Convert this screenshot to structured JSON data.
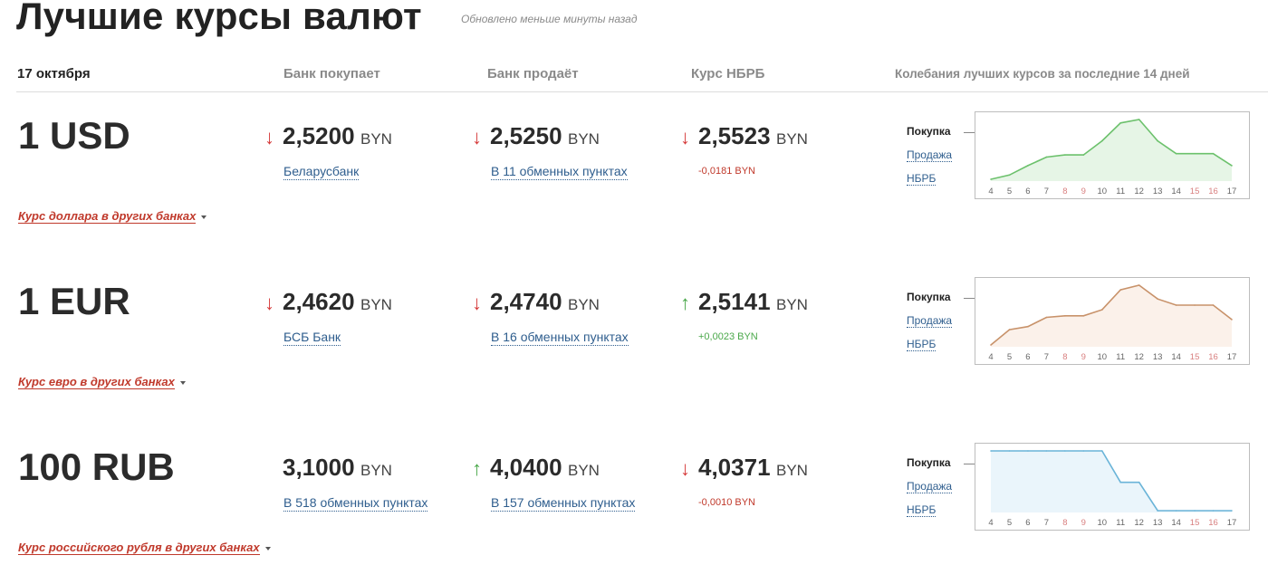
{
  "header": {
    "title": "Лучшие курсы валют",
    "updated": "Обновлено меньше минуты назад",
    "date": "17 октября",
    "col_buy": "Банк покупает",
    "col_sell": "Банк продаёт",
    "col_nbrb": "Курс НБРБ",
    "col_chart": "Колебания лучших курсов за последние 14 дней"
  },
  "chart_menu": {
    "buy": "Покупка",
    "sell": "Продажа",
    "nbrb": "НБРБ"
  },
  "currencies": [
    {
      "title": "1 USD",
      "buy": {
        "value": "2,5200",
        "unit": "BYN",
        "trend": "down",
        "source": "Беларусбанк"
      },
      "sell": {
        "value": "2,5250",
        "unit": "BYN",
        "trend": "down",
        "source": "В 11 обменных пунктах"
      },
      "nbrb": {
        "value": "2,5523",
        "unit": "BYN",
        "trend": "down",
        "delta": "-0,0181 BYN"
      },
      "others": "Курс доллара в других банках",
      "chart": {
        "line_color": "#6cc16c",
        "fill_color": "#e6f5e6",
        "x": [
          "4",
          "5",
          "6",
          "7",
          "8",
          "9",
          "10",
          "11",
          "12",
          "13",
          "14",
          "15",
          "16",
          "17"
        ],
        "values": [
          0.08,
          0.18,
          0.4,
          0.6,
          0.65,
          0.65,
          0.98,
          1.4,
          1.48,
          0.98,
          0.68,
          0.68,
          0.68,
          0.4
        ]
      }
    },
    {
      "title": "1 EUR",
      "buy": {
        "value": "2,4620",
        "unit": "BYN",
        "trend": "down",
        "source": "БСБ Банк"
      },
      "sell": {
        "value": "2,4740",
        "unit": "BYN",
        "trend": "down",
        "source": "В 16 обменных пунктах"
      },
      "nbrb": {
        "value": "2,5141",
        "unit": "BYN",
        "trend": "up",
        "delta": "+0,0023 BYN"
      },
      "others": "Курс евро в других банках",
      "chart": {
        "line_color": "#c8926a",
        "fill_color": "#fbf1ea",
        "x": [
          "4",
          "5",
          "6",
          "7",
          "8",
          "9",
          "10",
          "11",
          "12",
          "13",
          "14",
          "15",
          "16",
          "17"
        ],
        "values": [
          0.05,
          0.55,
          0.65,
          0.95,
          1.0,
          1.0,
          1.2,
          1.85,
          2.0,
          1.55,
          1.35,
          1.35,
          1.35,
          0.88
        ]
      }
    },
    {
      "title": "100 RUB",
      "buy": {
        "value": "3,1000",
        "unit": "BYN",
        "trend": "none",
        "source": "В 518 обменных пунктах"
      },
      "sell": {
        "value": "4,0400",
        "unit": "BYN",
        "trend": "up",
        "source": "В 157 обменных пунктах"
      },
      "nbrb": {
        "value": "4,0371",
        "unit": "BYN",
        "trend": "down",
        "delta": "-0,0010 BYN"
      },
      "others": "Курс российского рубля в других банках",
      "chart": {
        "line_color": "#6ab4d8",
        "fill_color": "#eaf5fb",
        "x": [
          "4",
          "5",
          "6",
          "7",
          "8",
          "9",
          "10",
          "11",
          "12",
          "13",
          "14",
          "15",
          "16",
          "17"
        ],
        "values": [
          3.1,
          3.1,
          3.1,
          3.1,
          3.1,
          3.1,
          3.1,
          3.0,
          3.0,
          2.91,
          2.91,
          2.91,
          2.91,
          2.91
        ]
      }
    }
  ],
  "colors": {
    "accent_red": "#c0392b",
    "link_blue": "#2f5e8e",
    "down": "#d63b3b",
    "up": "#4aa84a"
  }
}
